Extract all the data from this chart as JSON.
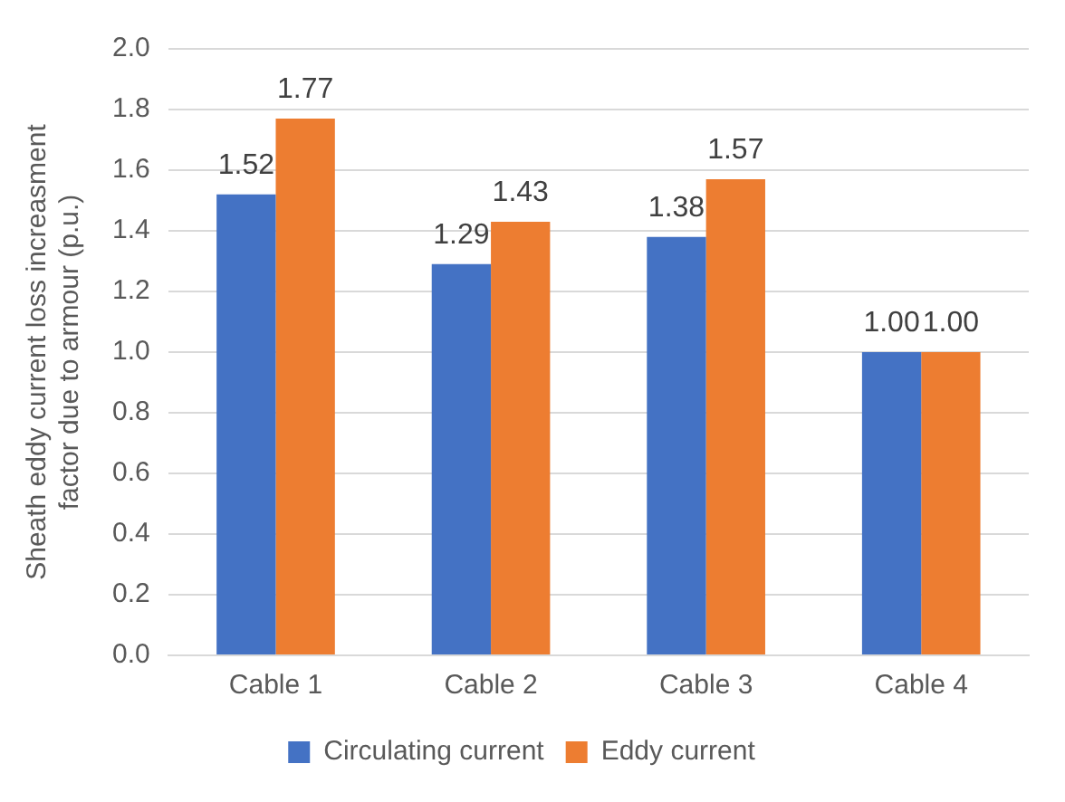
{
  "chart_data": {
    "type": "bar",
    "ylabel": "Sheath eddy current loss increasment factor due to armour (p.u.)",
    "categories": [
      "Cable 1",
      "Cable 2",
      "Cable 3",
      "Cable 4"
    ],
    "series": [
      {
        "name": "Circulating current",
        "color": "#4472c4",
        "values": [
          1.52,
          1.29,
          1.38,
          1.0
        ],
        "value_labels": [
          "1.52",
          "1.29",
          "1.38",
          "1.00"
        ]
      },
      {
        "name": "Eddy current",
        "color": "#ed7d31",
        "values": [
          1.77,
          1.43,
          1.57,
          1.0
        ],
        "value_labels": [
          "1.77",
          "1.43",
          "1.57",
          "1.00"
        ]
      }
    ],
    "ylim": [
      0,
      2
    ],
    "yticks": [
      {
        "value": 0,
        "label": "0.0"
      },
      {
        "value": 0.2,
        "label": "0.2"
      },
      {
        "value": 0.4,
        "label": "0.4"
      },
      {
        "value": 0.6,
        "label": "0.6"
      },
      {
        "value": 0.8,
        "label": "0.8"
      },
      {
        "value": 1,
        "label": "1.0"
      },
      {
        "value": 1.2,
        "label": "1.2"
      },
      {
        "value": 1.4,
        "label": "1.4"
      },
      {
        "value": 1.6,
        "label": "1.6"
      },
      {
        "value": 1.8,
        "label": "1.8"
      },
      {
        "value": 2,
        "label": "2.0"
      }
    ],
    "grid": "y",
    "legend": "bottom"
  }
}
